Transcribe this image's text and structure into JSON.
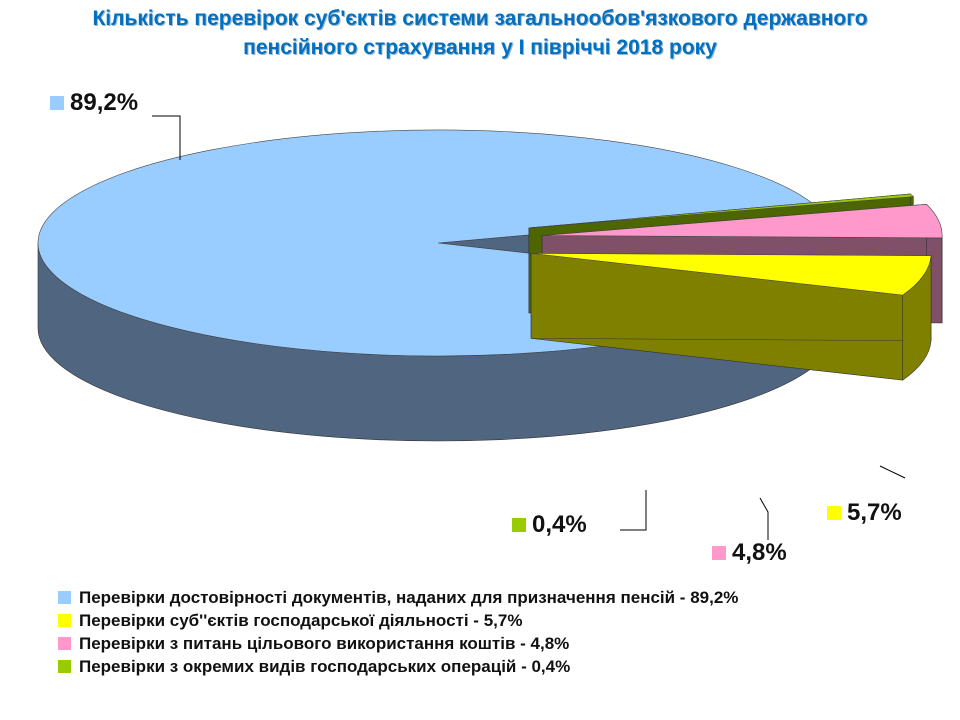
{
  "chart_data": {
    "type": "pie",
    "title_lines": [
      "Кількість перевірок суб'єктів системи загальнообов'язкового державного",
      "пенсійного страхування у І півріччі 2018 року"
    ],
    "slices": [
      {
        "value": 89.2,
        "data_label": "89,2%",
        "color": "#99ccff",
        "side_color": "#4f6580",
        "legend": "Перевірки достовірності документів, наданих для призначення пенсій - 89,2%"
      },
      {
        "value": 5.7,
        "data_label": "5,7%",
        "color": "#ffff00",
        "side_color": "#808000",
        "legend": "Перевірки суб''єктів господарської діяльності - 5,7%"
      },
      {
        "value": 4.8,
        "data_label": "4,8%",
        "color": "#ff99cc",
        "side_color": "#805068",
        "legend": "Перевірки з питань цільового використання коштів - 4,8%"
      },
      {
        "value": 0.4,
        "data_label": "0,4%",
        "color": "#99cc00",
        "side_color": "#4d6600",
        "legend": "Перевірки з окремих видів господарських операцій - 0,4%"
      }
    ],
    "legend_position": "bottom-left"
  }
}
